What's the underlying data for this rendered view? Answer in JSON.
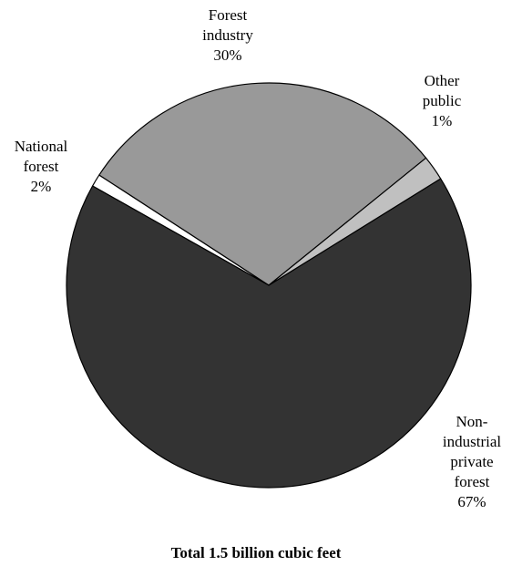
{
  "chart_data": {
    "type": "pie",
    "footer": "Total 1.5 billion cubic feet",
    "slices": [
      {
        "name": "Forest industry",
        "label_lines": [
          "Forest",
          "industry",
          "30%"
        ],
        "value": 30,
        "color": "#999999"
      },
      {
        "name": "Other public",
        "label_lines": [
          "Other",
          "public",
          "1%"
        ],
        "value": 1,
        "color": "#ffffff"
      },
      {
        "name": "Non-industrial private forest",
        "label_lines": [
          "Non-",
          "industrial",
          "private",
          "forest",
          "67%"
        ],
        "value": 67,
        "color": "#333333"
      },
      {
        "name": "National forest",
        "label_lines": [
          "National",
          "forest",
          "2%"
        ],
        "value": 2,
        "color": "#c0c0c0"
      }
    ]
  }
}
